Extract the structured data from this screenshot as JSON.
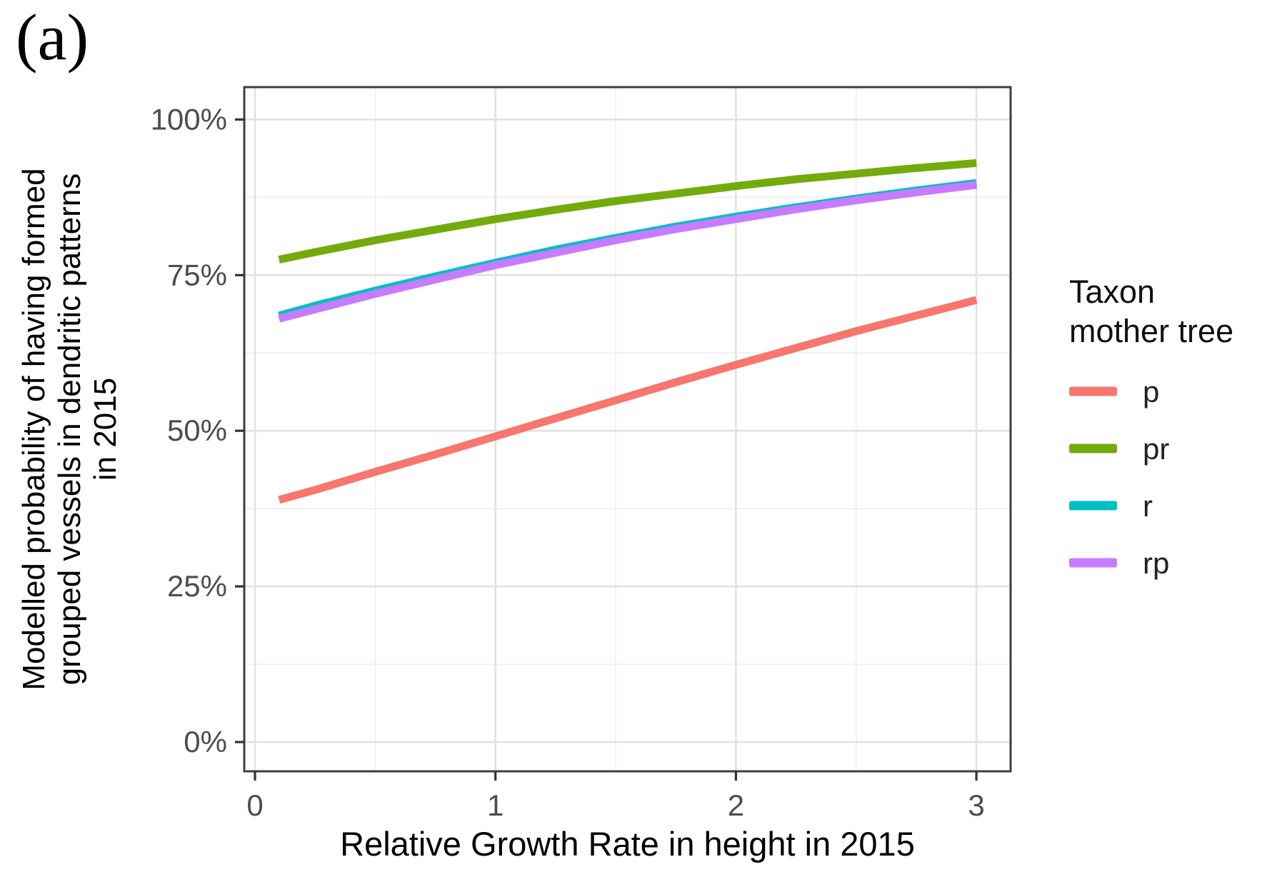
{
  "figure_label": "(a)",
  "colors": {
    "background": "#ffffff",
    "panel_fill": "#ffffff",
    "panel_border": "#3f3f3f",
    "grid_major": "#e2e2e2",
    "grid_minor": "#efefef",
    "tick_mark": "#333333",
    "tick_label": "#4d4d4d",
    "axis_title": "#000000",
    "legend_title": "#111111",
    "legend_label": "#222222"
  },
  "chart_data": {
    "type": "line",
    "title": "",
    "xlabel": "Relative Growth Rate in height in 2015",
    "ylabel": "Modelled probability of having formed\ngrouped vessels in dendritic patterns\nin 2015",
    "x_ticks": [
      0,
      1,
      2,
      3
    ],
    "x_tick_labels": [
      "0",
      "1",
      "2",
      "3"
    ],
    "y_ticks": [
      0,
      25,
      50,
      75,
      100
    ],
    "y_tick_labels": [
      "0%",
      "25%",
      "50%",
      "75%",
      "100%"
    ],
    "x_minor_ticks": [
      0.5,
      1.5,
      2.5
    ],
    "y_minor_ticks": [
      12.5,
      37.5,
      62.5,
      87.5
    ],
    "xlim": [
      -0.0446,
      3.1423
    ],
    "ylim": [
      -4.7,
      105.2
    ],
    "grid": true,
    "legend": {
      "title": "Taxon\nmother tree",
      "position": "right",
      "entries": [
        "p",
        "pr",
        "r",
        "rp"
      ]
    },
    "x": [
      0.1,
      0.25,
      0.5,
      0.75,
      1,
      1.25,
      1.5,
      1.75,
      2,
      2.25,
      2.5,
      2.75,
      3
    ],
    "series": [
      {
        "name": "p",
        "color": "#F8766D",
        "values": [
          38.9,
          40.5,
          43.4,
          46.2,
          49.1,
          52.0,
          54.9,
          57.8,
          60.6,
          63.3,
          66.0,
          68.5,
          71.0
        ]
      },
      {
        "name": "pr",
        "color": "#74AB0C",
        "values": [
          77.5,
          78.7,
          80.6,
          82.3,
          84.0,
          85.5,
          86.9,
          88.1,
          89.3,
          90.4,
          91.3,
          92.2,
          93.0
        ]
      },
      {
        "name": "r",
        "color": "#00BFC4",
        "values": [
          68.5,
          70.1,
          72.5,
          74.8,
          77.0,
          79.1,
          81.0,
          82.8,
          84.4,
          85.9,
          87.3,
          88.6,
          89.8
        ]
      },
      {
        "name": "rp",
        "color": "#C77CFF",
        "values": [
          68.0,
          69.5,
          72.0,
          74.3,
          76.6,
          78.6,
          80.6,
          82.4,
          84.0,
          85.6,
          87.0,
          88.3,
          89.5
        ]
      }
    ]
  }
}
